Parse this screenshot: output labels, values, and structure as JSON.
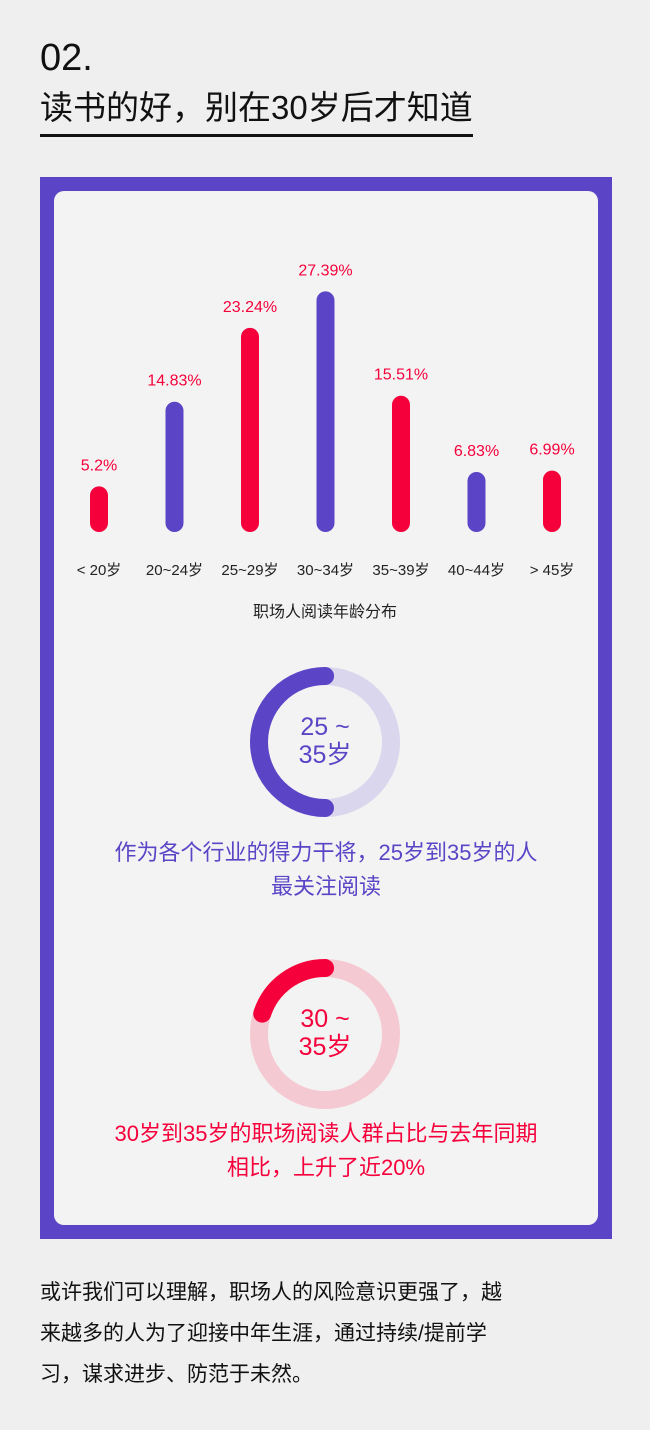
{
  "header": {
    "number": "02.",
    "title": "读书的好，别在30岁后才知道"
  },
  "colors": {
    "red": "#f5003b",
    "purple": "#5b45c6",
    "light_purple": "#dad6ee",
    "light_red": "#f4c9d2"
  },
  "chart_data": {
    "type": "bar",
    "title": "职场人阅读年龄分布",
    "categories": [
      "< 20岁",
      "20~24岁",
      "25~29岁",
      "30~34岁",
      "35~39岁",
      "40~44岁",
      "> 45岁"
    ],
    "values": [
      5.2,
      14.83,
      23.24,
      27.39,
      15.51,
      6.83,
      6.99
    ],
    "value_labels": [
      "5.2%",
      "14.83%",
      "23.24%",
      "27.39%",
      "15.51%",
      "6.83%",
      "6.99%"
    ],
    "bar_colors": [
      "red",
      "purple",
      "red",
      "purple",
      "red",
      "purple",
      "red"
    ],
    "ylim": [
      0,
      28
    ]
  },
  "donut1": {
    "label_line1": "25 ~",
    "label_line2": "35岁",
    "fraction": 0.5,
    "caption_line1": "作为各个行业的得力干将，25岁到35岁的人",
    "caption_line2": "最关注阅读"
  },
  "donut2": {
    "label_line1": "30 ~",
    "label_line2": "35岁",
    "fraction": 0.2,
    "caption_line1": "30岁到35岁的职场阅读人群占比与去年同期",
    "caption_line2": "相比，上升了近20%"
  },
  "footer": {
    "line1": "或许我们可以理解，职场人的风险意识更强了，越",
    "line2": "来越多的人为了迎接中年生涯，通过持续/提前学",
    "line3": "习，谋求进步、防范于未然。"
  }
}
